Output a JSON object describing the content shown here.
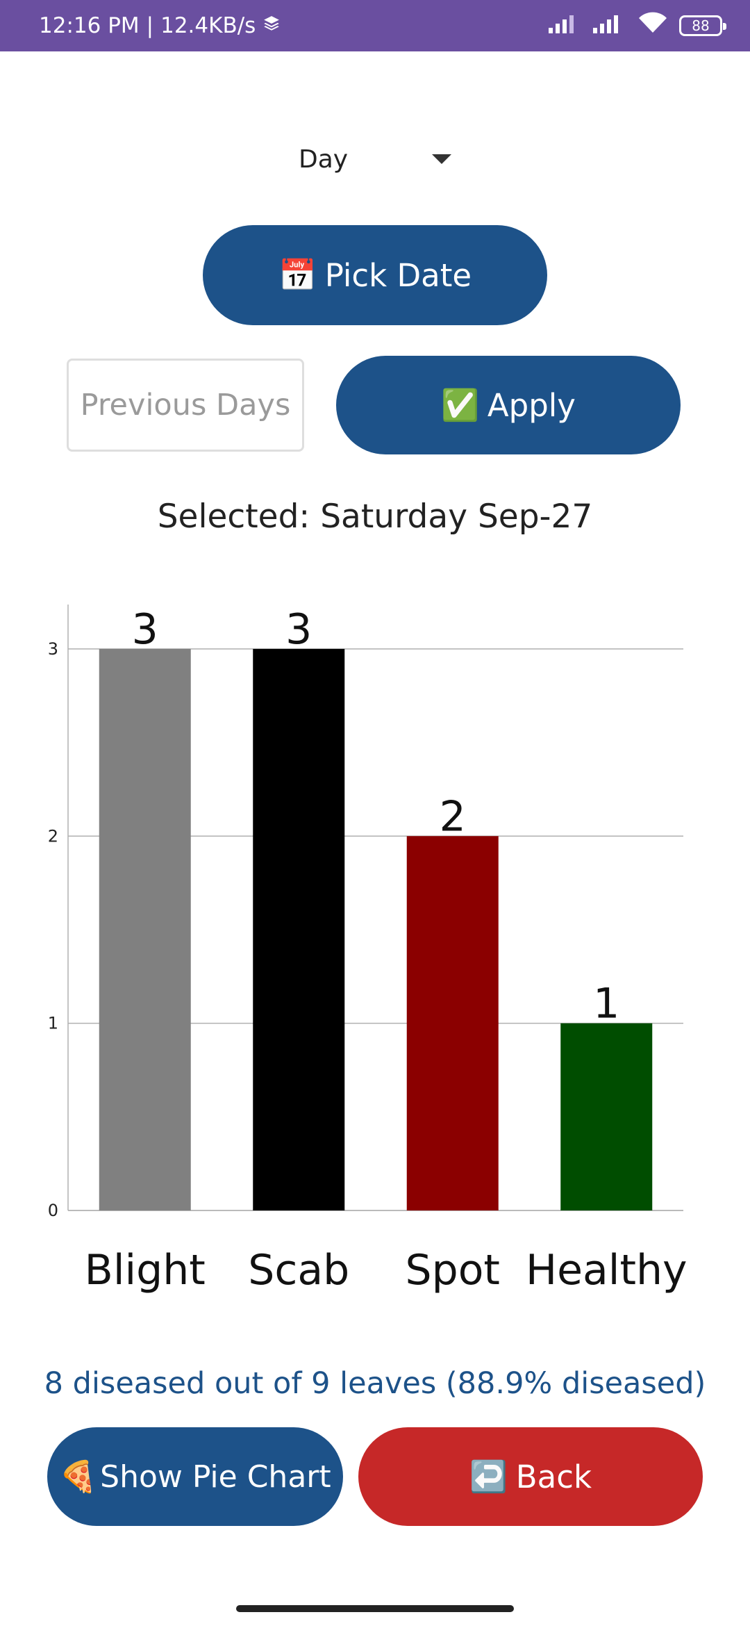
{
  "status_bar": {
    "time": "12:16 PM",
    "separator": "|",
    "speed": "12.4KB/s",
    "battery": "88"
  },
  "period_select": {
    "value": "Day"
  },
  "pick_date_button": {
    "icon": "📅",
    "label": "Pick Date"
  },
  "previous_days_input": {
    "value": "",
    "placeholder": "Previous Days"
  },
  "apply_button": {
    "icon": "✅",
    "label": "Apply"
  },
  "selected_label": "Selected: Saturday Sep-27",
  "chart_data": {
    "type": "bar",
    "categories": [
      "Blight",
      "Scab",
      "Spot",
      "Healthy"
    ],
    "values": [
      3,
      3,
      2,
      1
    ],
    "colors": [
      "#808080",
      "#000000",
      "#8b0000",
      "#004d00"
    ],
    "data_labels": [
      "3",
      "3",
      "2",
      "1"
    ],
    "yticks": [
      "0",
      "1",
      "2",
      "3"
    ],
    "ylim": [
      0,
      3.2
    ],
    "grid": true,
    "legend": "none"
  },
  "summary_text": "8 diseased out of 9 leaves (88.9% diseased)",
  "show_pie_button": {
    "icon": "🍕",
    "label": "Show Pie Chart"
  },
  "back_button": {
    "icon": "↩️",
    "label": "Back"
  }
}
